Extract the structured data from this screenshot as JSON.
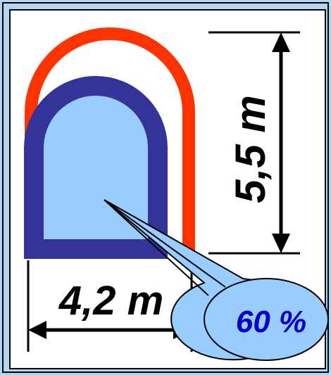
{
  "dimensions": {
    "width_label": "4,2 m",
    "height_label": "5,5 m"
  },
  "callout": {
    "value_label": "60 %"
  },
  "colors": {
    "page_background": "#b3d6f0",
    "panel_background": "#ffffff",
    "outer_profile": "#ff3300",
    "inner_profile": "#333399",
    "inner_fill": "#99ccff",
    "callout_fill": "#99ccff",
    "callout_text": "#0000cc",
    "dimension_lines": "#000000"
  }
}
